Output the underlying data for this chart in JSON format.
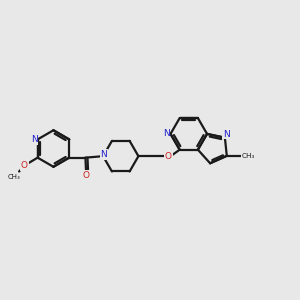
{
  "bg_color": "#e8e8e8",
  "bond_color": "#1a1a1a",
  "n_color": "#2020cc",
  "o_color": "#cc2020",
  "lw": 1.6,
  "fs": 6.5,
  "figsize": [
    3.0,
    3.0
  ],
  "dpi": 100,
  "xlim": [
    0,
    10
  ],
  "ylim": [
    2,
    8
  ]
}
